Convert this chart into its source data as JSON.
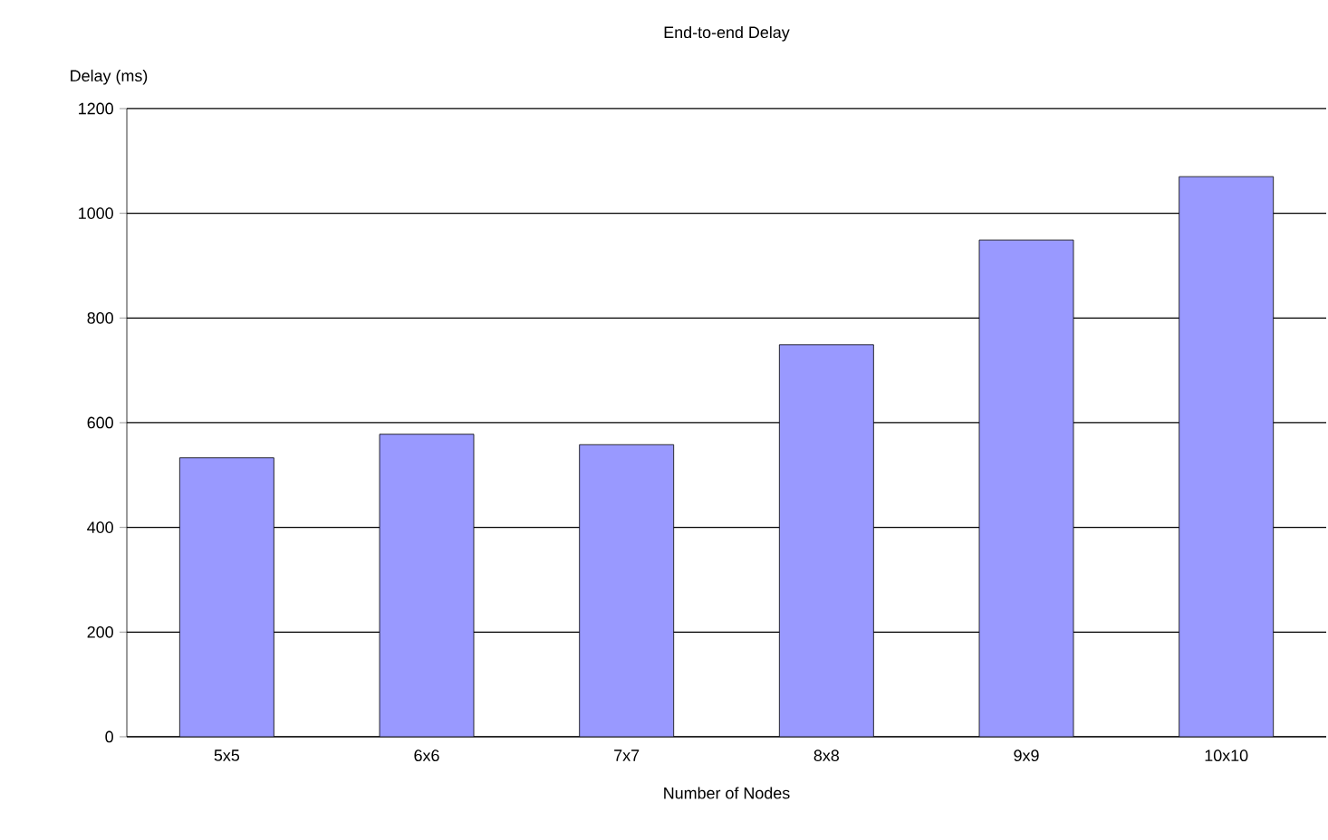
{
  "chart_data": {
    "type": "bar",
    "title": "End-to-end Delay",
    "xlabel": "Number of Nodes",
    "ylabel": "Delay (ms)",
    "categories": [
      "5x5",
      "6x6",
      "7x7",
      "8x8",
      "9x9",
      "10x10"
    ],
    "values": [
      533,
      578,
      558,
      749,
      949,
      1070
    ],
    "color": "#9999ff",
    "ylim": [
      0,
      1200
    ],
    "yticks": [
      0,
      200,
      400,
      600,
      800,
      1000,
      1200
    ],
    "grid": "y"
  }
}
